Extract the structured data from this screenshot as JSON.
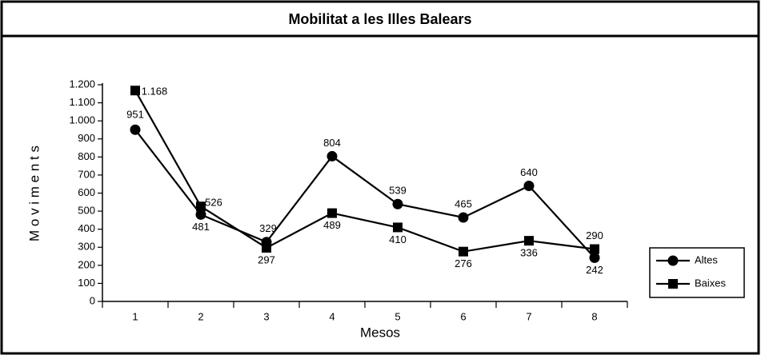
{
  "chart_data": {
    "type": "line",
    "title": "Mobilitat a les Illes Balears",
    "xlabel": "Mesos",
    "ylabel": "M o v i m e n t s",
    "categories": [
      "1",
      "2",
      "3",
      "4",
      "5",
      "6",
      "7",
      "8"
    ],
    "series": [
      {
        "name": "Altes",
        "color": "#000000",
        "marker": "circle",
        "values": [
          951,
          481,
          329,
          804,
          539,
          465,
          640,
          242
        ]
      },
      {
        "name": "Baixes",
        "color": "#000000",
        "marker": "square",
        "values": [
          1168,
          526,
          297,
          489,
          410,
          276,
          336,
          290
        ],
        "value_labels": [
          "1.168",
          "526",
          "297",
          "489",
          "410",
          "276",
          "336",
          "290"
        ]
      }
    ],
    "ylim": [
      0,
      1200
    ],
    "yticks": [
      0,
      100,
      200,
      300,
      400,
      500,
      600,
      700,
      800,
      900,
      {
        "value": 1000,
        "label": "1.000"
      },
      {
        "value": 1100,
        "label": "1.100"
      },
      {
        "value": 1200,
        "label": "1.200"
      }
    ],
    "legend": "right",
    "grid": false
  }
}
